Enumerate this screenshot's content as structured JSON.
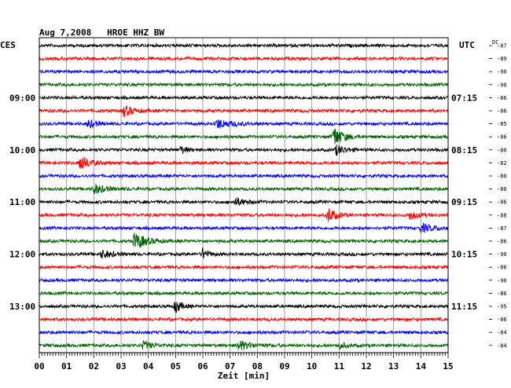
{
  "chart_data": {
    "type": "line",
    "title": "Aug 7,2008   HROE HHZ BW",
    "left_label": "CES",
    "right_label": "UTC",
    "dc_label": "DC",
    "xlabel": "Zeit [min]",
    "xlim": [
      0,
      15
    ],
    "x_ticks": [
      "00",
      "01",
      "02",
      "03",
      "04",
      "05",
      "06",
      "07",
      "08",
      "09",
      "10",
      "11",
      "12",
      "13",
      "14",
      "15"
    ],
    "line_colors": [
      "#000000",
      "#ff0000",
      "#0000ff",
      "#006400"
    ],
    "left_time_labels": [
      {
        "trace": 4,
        "text": "09:00"
      },
      {
        "trace": 8,
        "text": "10:00"
      },
      {
        "trace": 12,
        "text": "11:00"
      },
      {
        "trace": 16,
        "text": "12:00"
      },
      {
        "trace": 20,
        "text": "13:00"
      }
    ],
    "right_time_labels": [
      {
        "trace": 4,
        "text": "07:15"
      },
      {
        "trace": 8,
        "text": "08:15"
      },
      {
        "trace": 12,
        "text": "09:15"
      },
      {
        "trace": 16,
        "text": "10:15"
      },
      {
        "trace": 20,
        "text": "11:15"
      }
    ],
    "dc_values": [
      "-87",
      "-89",
      "-90",
      "-90",
      "-86",
      "-86",
      "-85",
      "-86",
      "-80",
      "-82",
      "-80",
      "-80",
      "-86",
      "-88",
      "-87",
      "-86",
      "-90",
      "-86",
      "-90",
      "-86",
      "-95",
      "-86",
      "-84",
      "-84"
    ],
    "events": [
      {
        "trace": 5,
        "minute": 3.1,
        "amp": 7,
        "dur": 0.5
      },
      {
        "trace": 6,
        "minute": 1.8,
        "amp": 5,
        "dur": 0.5
      },
      {
        "trace": 6,
        "minute": 6.5,
        "amp": 6,
        "dur": 0.8
      },
      {
        "trace": 7,
        "minute": 10.8,
        "amp": 13,
        "dur": 0.5
      },
      {
        "trace": 8,
        "minute": 5.2,
        "amp": 5,
        "dur": 0.3
      },
      {
        "trace": 8,
        "minute": 10.9,
        "amp": 6,
        "dur": 0.5
      },
      {
        "trace": 9,
        "minute": 1.5,
        "amp": 10,
        "dur": 0.5
      },
      {
        "trace": 11,
        "minute": 2.0,
        "amp": 6,
        "dur": 0.7
      },
      {
        "trace": 12,
        "minute": 7.2,
        "amp": 5,
        "dur": 0.5
      },
      {
        "trace": 13,
        "minute": 10.6,
        "amp": 10,
        "dur": 0.4
      },
      {
        "trace": 13,
        "minute": 13.6,
        "amp": 6,
        "dur": 0.4
      },
      {
        "trace": 14,
        "minute": 14.0,
        "amp": 5,
        "dur": 0.8
      },
      {
        "trace": 15,
        "minute": 3.5,
        "amp": 11,
        "dur": 0.6
      },
      {
        "trace": 16,
        "minute": 2.3,
        "amp": 5,
        "dur": 0.6
      },
      {
        "trace": 16,
        "minute": 6.0,
        "amp": 7,
        "dur": 0.3
      },
      {
        "trace": 20,
        "minute": 5.0,
        "amp": 9,
        "dur": 0.3
      },
      {
        "trace": 23,
        "minute": 3.8,
        "amp": 5,
        "dur": 0.5
      },
      {
        "trace": 23,
        "minute": 7.3,
        "amp": 6,
        "dur": 0.7
      },
      {
        "trace": 23,
        "minute": 11.0,
        "amp": 4,
        "dur": 0.4
      }
    ],
    "grid": true
  }
}
